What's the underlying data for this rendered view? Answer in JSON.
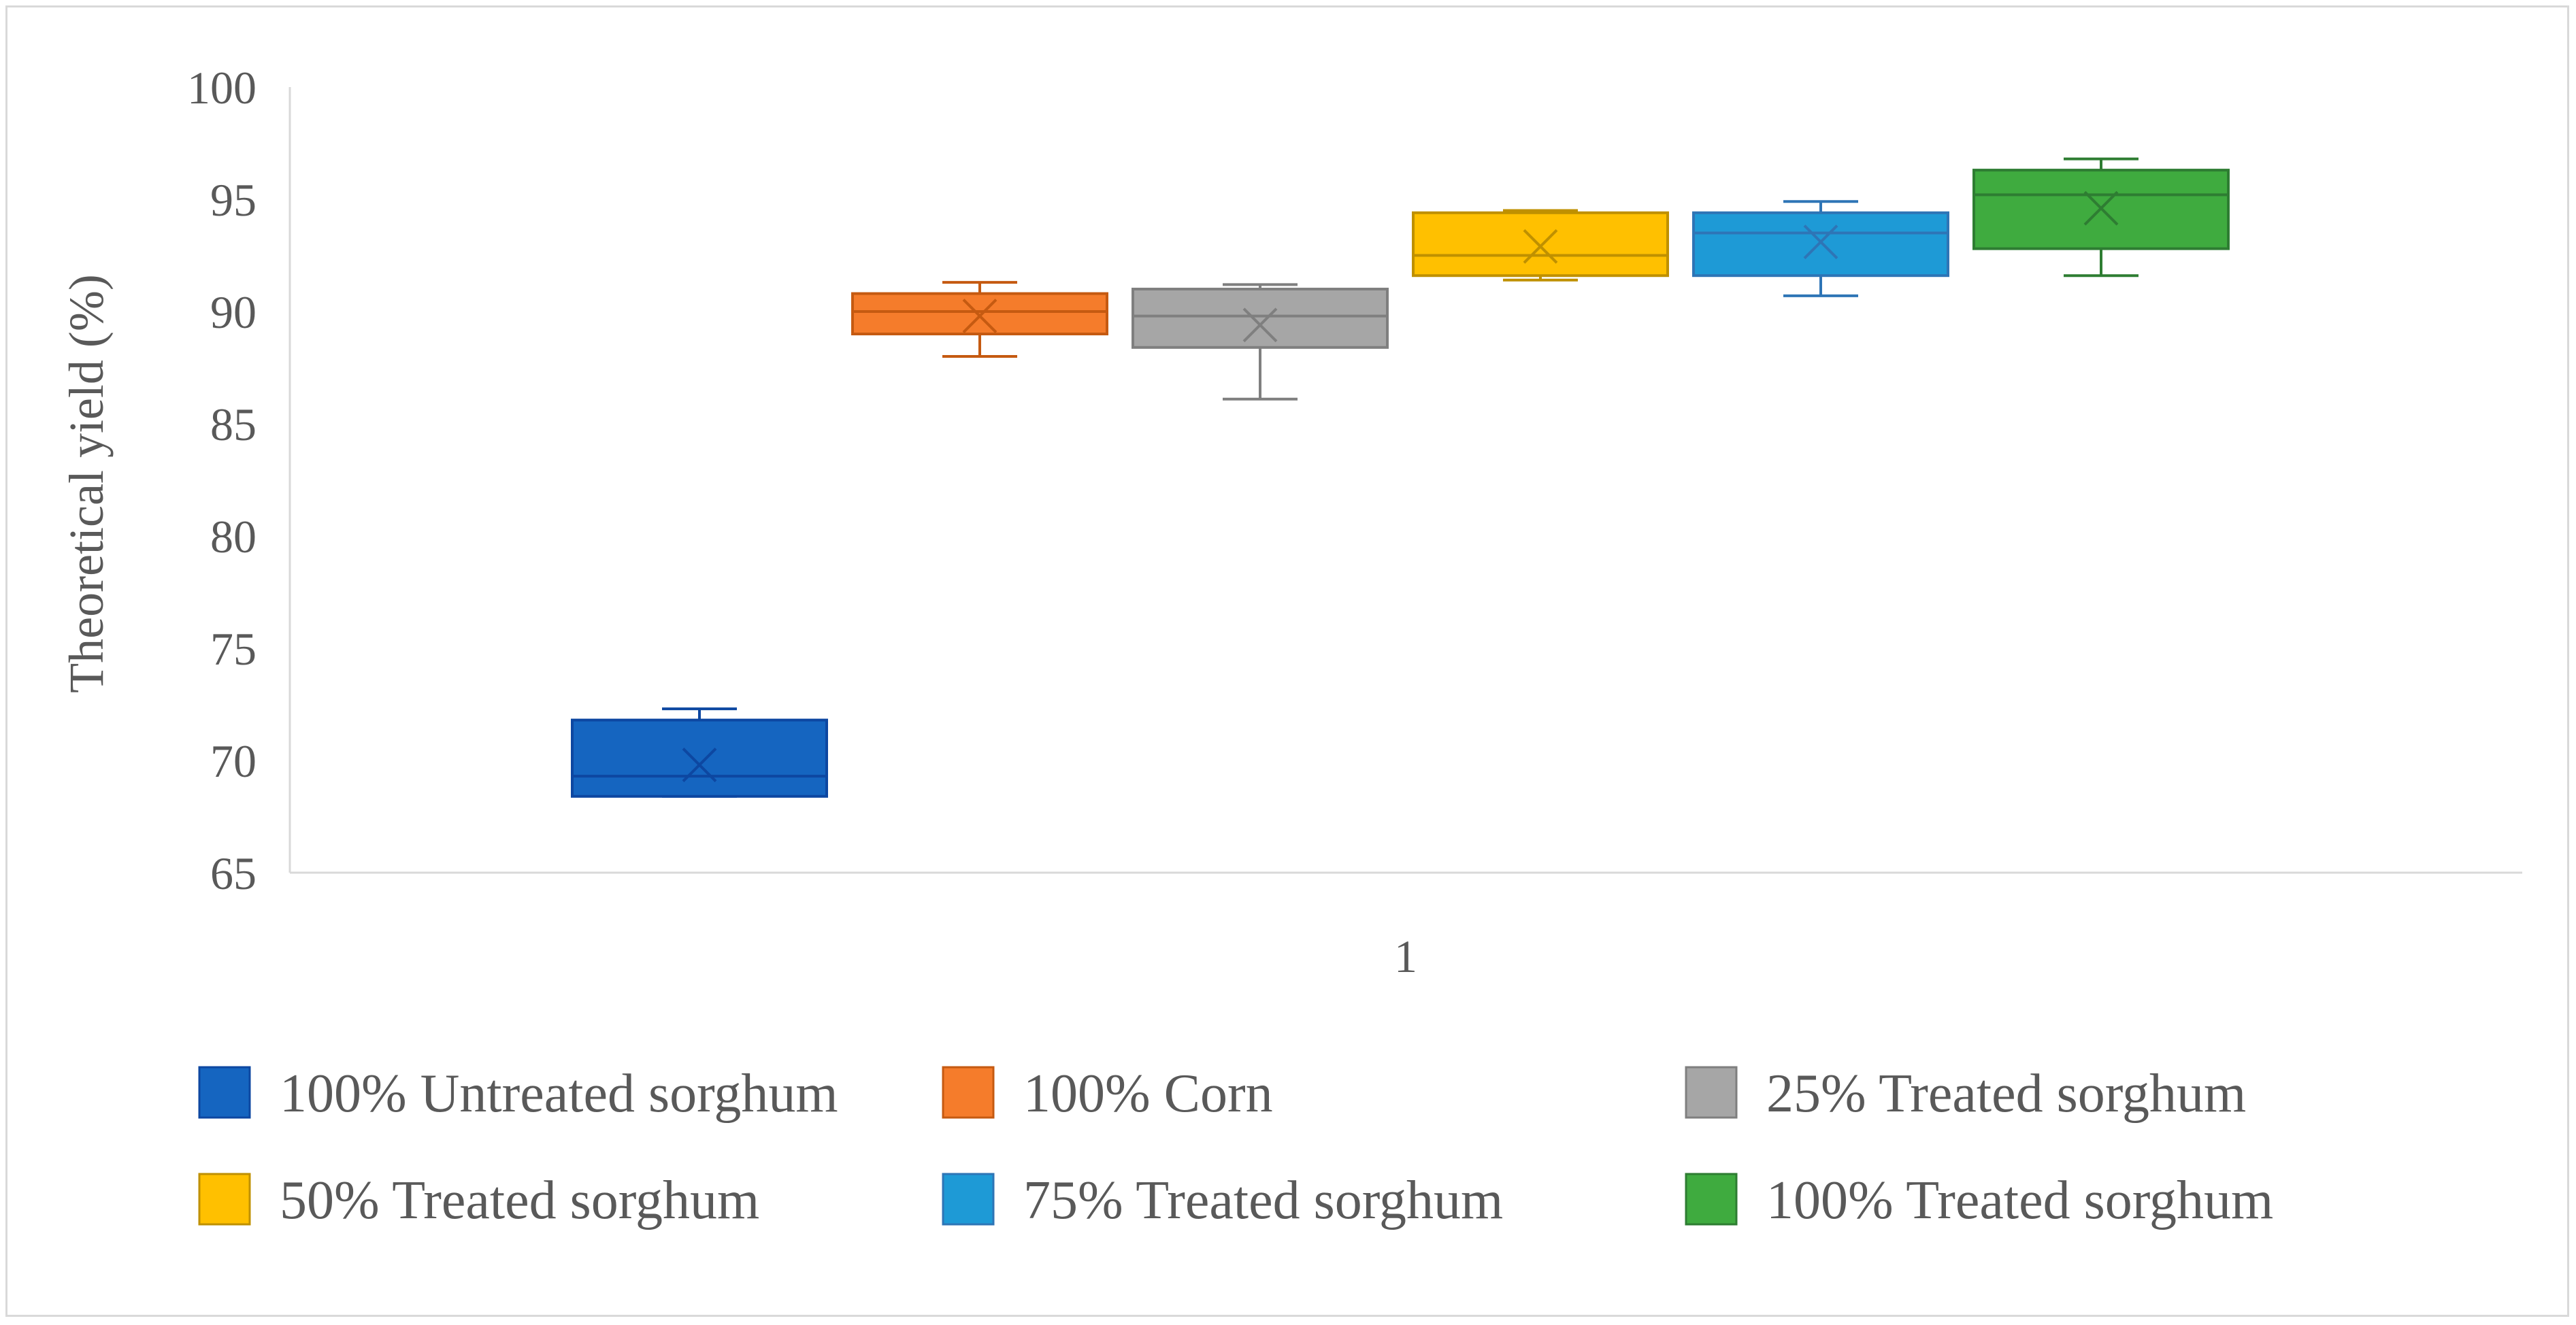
{
  "chart_data": {
    "type": "box",
    "title": "",
    "xlabel": "",
    "ylabel": "Theoretical yield (%)",
    "ylim": [
      65,
      100
    ],
    "yticks": [
      65,
      70,
      75,
      80,
      85,
      90,
      95,
      100
    ],
    "categories": [
      "1"
    ],
    "grid": false,
    "legend_position": "bottom",
    "series": [
      {
        "name": "100% Untreated sorghum",
        "color": "#1565c0",
        "edge": "#0d47a1",
        "min": 68.4,
        "q1": 68.4,
        "median": 69.3,
        "q3": 71.8,
        "max": 72.3,
        "mean": 69.8
      },
      {
        "name": "100% Corn",
        "color": "#f57c2b",
        "edge": "#c55a11",
        "min": 88.0,
        "q1": 89.0,
        "median": 90.0,
        "q3": 90.8,
        "max": 91.3,
        "mean": 89.8
      },
      {
        "name": "25% Treated sorghum",
        "color": "#a6a6a6",
        "edge": "#7f7f7f",
        "min": 86.1,
        "q1": 88.4,
        "median": 89.8,
        "q3": 91.0,
        "max": 91.2,
        "mean": 89.4
      },
      {
        "name": "50% Treated sorghum",
        "color": "#ffc000",
        "edge": "#bf9000",
        "min": 91.4,
        "q1": 91.6,
        "median": 92.5,
        "q3": 94.4,
        "max": 94.5,
        "mean": 92.9
      },
      {
        "name": "75% Treated sorghum",
        "color": "#1e9ad6",
        "edge": "#2e75b6",
        "min": 90.7,
        "q1": 91.6,
        "median": 93.5,
        "q3": 94.4,
        "max": 94.9,
        "mean": 93.1
      },
      {
        "name": "100% Treated sorghum",
        "color": "#3fab3f",
        "edge": "#2e7d32",
        "min": 91.6,
        "q1": 92.8,
        "median": 95.2,
        "q3": 96.3,
        "max": 96.8,
        "mean": 94.6
      }
    ]
  }
}
